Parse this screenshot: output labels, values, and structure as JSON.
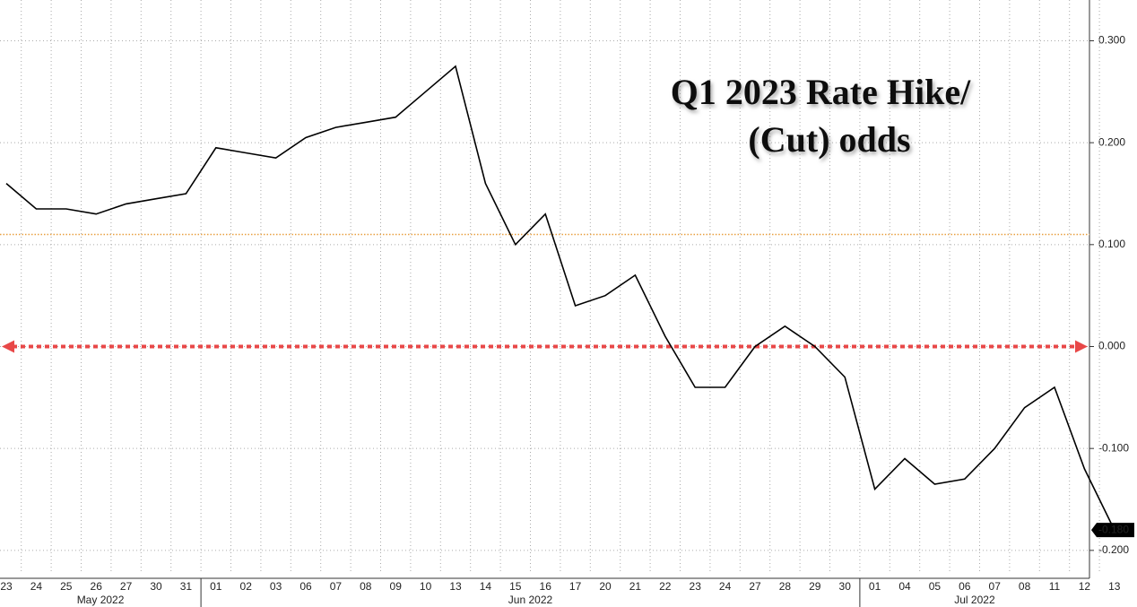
{
  "chart_data": {
    "type": "line",
    "title": [
      "Q1 2023 Rate Hike/",
      "(Cut) odds"
    ],
    "categories": [
      "23",
      "24",
      "25",
      "26",
      "27",
      "30",
      "31",
      "01",
      "02",
      "03",
      "06",
      "07",
      "08",
      "09",
      "10",
      "13",
      "14",
      "15",
      "16",
      "17",
      "20",
      "21",
      "22",
      "23",
      "24",
      "27",
      "28",
      "29",
      "30",
      "01",
      "04",
      "05",
      "06",
      "07",
      "08",
      "11",
      "12",
      "13"
    ],
    "category_groups": [
      {
        "label": "May 2022",
        "span": 7
      },
      {
        "label": "Jun 2022",
        "span": 22
      },
      {
        "label": "Jul 2022",
        "span": 9
      }
    ],
    "series": [
      {
        "name": "Q1 2023 Rate Hike/(Cut) odds",
        "color": "#000000",
        "values": [
          0.16,
          0.135,
          0.135,
          0.13,
          0.14,
          0.145,
          0.15,
          0.195,
          0.19,
          0.185,
          0.205,
          0.215,
          0.22,
          0.225,
          0.25,
          0.275,
          0.16,
          0.1,
          0.13,
          0.04,
          0.05,
          0.07,
          0.01,
          -0.04,
          -0.04,
          0.0,
          0.02,
          0.0,
          -0.03,
          -0.14,
          -0.11,
          -0.135,
          -0.13,
          -0.1,
          -0.06,
          -0.04,
          -0.12,
          -0.18
        ],
        "value_labels": [
          null,
          null,
          null,
          null,
          null,
          null,
          null,
          null,
          null,
          null,
          null,
          null,
          null,
          null,
          null,
          null,
          null,
          null,
          null,
          null,
          null,
          null,
          null,
          null,
          null,
          null,
          null,
          null,
          null,
          null,
          null,
          null,
          null,
          null,
          null,
          null,
          null,
          "-0.180"
        ]
      }
    ],
    "reference_lines": [
      {
        "value": 0.11,
        "color": "#e8a040"
      },
      {
        "value": 0,
        "color": "#e84848"
      }
    ],
    "ylim": [
      -0.223,
      0.34
    ],
    "yticks": [
      {
        "value": 0.3,
        "label": "0.300"
      },
      {
        "value": 0.2,
        "label": "0.200"
      },
      {
        "value": 0.1,
        "label": "0.100"
      },
      {
        "value": 0,
        "label": "0.000"
      },
      {
        "value": -0.1,
        "label": "-0.100"
      },
      {
        "value": -0.2,
        "label": "-0.200"
      }
    ],
    "grid": true
  }
}
